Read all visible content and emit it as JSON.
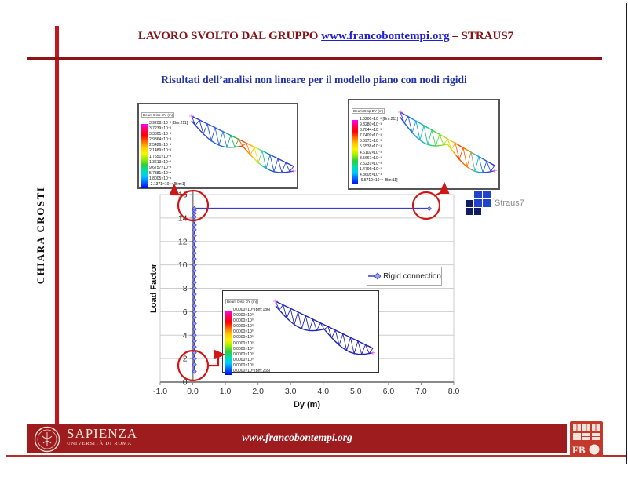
{
  "header": {
    "prefix": "LAVORO SVOLTO DAL GRUPPO ",
    "link": "www.francobontempi.org",
    "suffix": " – STRAUS7"
  },
  "title": "Risultati dell’analisi non lineare per il modello piano con nodi rigidi",
  "author": "CHIARA CROSTI",
  "straus7_label": "Straus7",
  "insets": {
    "legend_title": "Beam Disp DY  (m)",
    "left": {
      "values": [
        "3.9208×10⁻³ [Bm:211]",
        "3.7239×10⁻³",
        "3.3301×10⁻³",
        "2.9364×10⁻³",
        "2.5426×10⁻³",
        "2.1489×10⁻³",
        "1.7551×10⁻³",
        "1.3613×10⁻³",
        "9.6757×10⁻⁴",
        "5.7381×10⁻⁴",
        "1.8005×10⁻⁴",
        "-2.1371×10⁻⁴ [Bm:1]"
      ]
    },
    "right": {
      "values": [
        "1.0200×10⁻² [Bm:211]",
        "9.8280×10⁻³",
        "8.7844×10⁻³",
        "7.7409×10⁻³",
        "6.6973×10⁻³",
        "5.6538×10⁻³",
        "4.6102×10⁻³",
        "3.5667×10⁻³",
        "2.5231×10⁻³",
        "1.4796×10⁻³",
        "4.3605×10⁻⁴",
        "-6.5719×10⁻⁴ [Bm:11]"
      ]
    },
    "middle": {
      "values": [
        "0.0000×10⁰ [Bm:186]",
        "0.0000×10⁰",
        "0.0000×10⁰",
        "0.0000×10⁰",
        "0.0000×10⁰",
        "0.0000×10⁰",
        "0.0000×10⁰",
        "0.0000×10⁰",
        "0.0000×10⁰",
        "0.0000×10⁰",
        "0.0000×10⁰",
        "0.0000×10⁰ [Bm:265]"
      ]
    }
  },
  "chart_data": {
    "type": "line",
    "title": "",
    "xlabel": "Dy (m)",
    "ylabel": "Load Factor",
    "xlim": [
      -1.0,
      8.0
    ],
    "ylim": [
      0,
      16
    ],
    "x_ticks": [
      "-1.0",
      "0.0",
      "1.0",
      "2.0",
      "3.0",
      "4.0",
      "5.0",
      "6.0",
      "7.0",
      "8.0"
    ],
    "y_ticks": [
      0,
      2,
      4,
      6,
      8,
      10,
      12,
      14,
      16
    ],
    "grid": "horizontal",
    "legend_position": "middle-right",
    "series": [
      {
        "name": "Rigid connection",
        "color": "#3a3ad6",
        "marker": "diamond",
        "points": [
          [
            0.05,
            0.9
          ],
          [
            0.05,
            1.5
          ],
          [
            0.05,
            2
          ],
          [
            0.05,
            2.5
          ],
          [
            0.05,
            3
          ],
          [
            0.05,
            3.5
          ],
          [
            0.05,
            4
          ],
          [
            0.05,
            4.5
          ],
          [
            0.05,
            5
          ],
          [
            0.05,
            5.5
          ],
          [
            0.05,
            6
          ],
          [
            0.05,
            6.5
          ],
          [
            0.05,
            7
          ],
          [
            0.05,
            7.5
          ],
          [
            0.05,
            8
          ],
          [
            0.05,
            8.5
          ],
          [
            0.05,
            9
          ],
          [
            0.05,
            9.5
          ],
          [
            0.05,
            10
          ],
          [
            0.05,
            10.5
          ],
          [
            0.05,
            11
          ],
          [
            0.05,
            11.5
          ],
          [
            0.05,
            12
          ],
          [
            0.05,
            12.5
          ],
          [
            0.05,
            13
          ],
          [
            0.05,
            13.4
          ],
          [
            0.05,
            13.8
          ],
          [
            0.05,
            14.1
          ],
          [
            0.05,
            14.4
          ],
          [
            0.05,
            14.65
          ],
          [
            0.05,
            14.8
          ],
          [
            7.25,
            14.8
          ]
        ]
      }
    ]
  },
  "footer": {
    "brand": "SAPIENZA",
    "brand_sub": "UNIVERSITÀ DI ROMA",
    "link": "www.francobontempi.org"
  },
  "colors": {
    "maroon": "#8c1416",
    "bright_red": "#c4161c",
    "annotation_red": "#cf1717",
    "title_blue": "#2433a8",
    "link_blue": "#1f1fd0",
    "line_blue": "#3a3ad6",
    "footer_bar": "#9e1b1e"
  }
}
